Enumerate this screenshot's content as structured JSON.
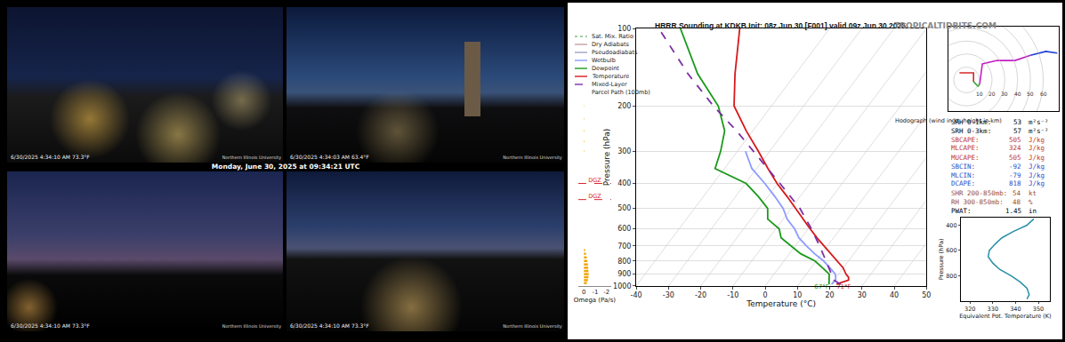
{
  "webcams": {
    "caption": "Monday, June 30, 2025 at 09:34:21 UTC",
    "panels": [
      {
        "timestamp": "6/30/2025 4:34:10 AM  73.3°F",
        "logo": "Northern Illinois University"
      },
      {
        "timestamp": "6/30/2025 4:34:03 AM  63.4°F",
        "logo": "Northern Illinois University"
      },
      {
        "timestamp": "6/30/2025 4:34:10 AM  73.3°F",
        "logo": "Northern Illinois University"
      },
      {
        "timestamp": "6/30/2025 4:34:10 AM  73.3°F",
        "logo": "Northern Illinois University"
      }
    ]
  },
  "site_label": "TROPICALTIDBITS.COM",
  "chart_data": [
    {
      "type": "skew-t",
      "title": "HRRR Sounding at KDKB Init: 08z Jun 30 [F001] valid 09z Jun 30 2025",
      "xlabel": "Temperature (°C)",
      "ylabel": "Pressure (hPa)",
      "xlim": [
        -40,
        50
      ],
      "xticks": [
        -40,
        -30,
        -20,
        -10,
        0,
        10,
        20,
        30,
        40,
        50
      ],
      "ylim": [
        1000,
        100
      ],
      "yticks": [
        100,
        200,
        300,
        400,
        500,
        600,
        700,
        800,
        900,
        1000
      ],
      "log": "y",
      "grid": true,
      "reference_lines": [
        {
          "name": "Sat. Mix. Ratio",
          "color": "#7fbf7f",
          "line_style": "dot"
        },
        {
          "name": "Dry Adiabats",
          "color": "#c8a0a0",
          "line_style": "solid"
        },
        {
          "name": "Pseudoadiabats",
          "color": "#a0a0c8",
          "line_style": "solid"
        }
      ],
      "series": [
        {
          "name": "Wetbulb",
          "color": "#8c9cff",
          "line_style": "solid",
          "y": [
            985,
            950,
            925,
            900,
            850,
            800,
            750,
            700,
            650,
            600,
            550,
            500,
            450,
            400,
            350,
            300
          ],
          "x": [
            20.2,
            20.5,
            19.8,
            19.0,
            15.8,
            12.3,
            7.8,
            3.5,
            -0.8,
            -4.2,
            -8.8,
            -12.5,
            -17.8,
            -24.0,
            -31.5,
            -37.5
          ]
        },
        {
          "name": "Dewpoint",
          "color": "#1a9a1a",
          "line_style": "solid",
          "y": [
            985,
            950,
            925,
            900,
            850,
            800,
            750,
            700,
            650,
            600,
            550,
            500,
            450,
            400,
            350,
            300,
            250,
            200,
            150,
            100
          ],
          "x": [
            19.4,
            18.5,
            17.8,
            17.1,
            13.5,
            9.6,
            3.5,
            -1.2,
            -6.3,
            -9.0,
            -14.8,
            -17.3,
            -22.9,
            -29.8,
            -42.9,
            -45.2,
            -48.7,
            -56.5,
            -70.4,
            -86.3
          ]
        },
        {
          "name": "Temperature",
          "color": "#d7191c",
          "line_style": "solid",
          "y": [
            985,
            950,
            925,
            900,
            850,
            800,
            750,
            700,
            650,
            600,
            550,
            500,
            450,
            400,
            350,
            300,
            250,
            200,
            150,
            100
          ],
          "x": [
            21.7,
            24.5,
            23.8,
            22.3,
            19.9,
            16.5,
            12.8,
            9.0,
            4.8,
            0.6,
            -3.8,
            -8.5,
            -14.0,
            -20.2,
            -26.5,
            -33.5,
            -42.0,
            -51.6,
            -58.8,
            -67.9
          ]
        },
        {
          "name": "Mixed-Layer Parcel Path (100mb)",
          "color": "#7b2fa6",
          "line_style": "dash",
          "y": [
            985,
            950,
            900,
            850,
            800,
            700,
            600,
            500,
            400,
            300,
            250,
            200,
            150,
            100
          ],
          "x": [
            23.0,
            20.0,
            17.8,
            15.5,
            13.0,
            7.6,
            1.0,
            -7.3,
            -19.3,
            -35.0,
            -45.0,
            -58.0,
            -73.4,
            -93.0
          ]
        }
      ],
      "annotations": [
        {
          "text": "67°F",
          "x": 19.4,
          "y": 985,
          "color": "#1a9a1a"
        },
        {
          "text": "71°F",
          "x": 21.7,
          "y": 985,
          "color": "#d7191c"
        }
      ]
    },
    {
      "type": "bar",
      "orientation": "horizontal",
      "xlabel": "Omega (Pa/s)",
      "xlim": [
        0.5,
        -2.4
      ],
      "xticks": [
        0,
        -1,
        -2
      ],
      "ylim": [
        1000,
        100
      ],
      "log": "y",
      "tick_labels": "x",
      "y": [
        975,
        950,
        925,
        900,
        875,
        850,
        825,
        800,
        775,
        750,
        725,
        300,
        275,
        250,
        225,
        200
      ],
      "values": [
        -0.25,
        -0.35,
        -0.4,
        -0.42,
        -0.4,
        -0.38,
        -0.35,
        -0.3,
        -0.25,
        -0.18,
        -0.1,
        -0.05,
        -0.06,
        -0.05,
        -0.04,
        -0.03
      ],
      "colors": [
        "#f0a500",
        "#f0a500",
        "#f0a500",
        "#f0a500",
        "#f0a500",
        "#f0a500",
        "#f0a500",
        "#f0a500",
        "#f0a500",
        "#f0a500",
        "#f0a500",
        "#f5d033",
        "#f5d033",
        "#f5d033",
        "#f5d033",
        "#f5d033"
      ],
      "annotations": [
        {
          "text": "DGZ",
          "y": 400,
          "color": "#d62728"
        },
        {
          "text": "DGZ",
          "y": 462,
          "color": "#d62728"
        }
      ]
    },
    {
      "type": "line",
      "title": "Hodograph (wind in kt, height in km)",
      "xlim": [
        -14,
        72
      ],
      "ylim": [
        -24,
        41
      ],
      "tick_labels": false,
      "rings": [
        10,
        20,
        30,
        40,
        50,
        60
      ],
      "series": [
        {
          "color": "#d62728",
          "x": [
            -5.5,
            5.5,
            5.5
          ],
          "y": [
            5.5,
            5.5,
            -1.4
          ]
        },
        {
          "color": "#2ca02c",
          "x": [
            5.5,
            9,
            10.3
          ],
          "y": [
            -1.4,
            -4.8,
            -3.4
          ]
        },
        {
          "color": "#c21fc2",
          "x": [
            10.3,
            12.4,
            24,
            38,
            50
          ],
          "y": [
            -3.4,
            12.4,
            15,
            15,
            19
          ]
        },
        {
          "color": "#1f3fd6",
          "x": [
            50,
            62,
            71
          ],
          "y": [
            19,
            22,
            20.7
          ]
        }
      ]
    },
    {
      "type": "line",
      "xlabel": "Equivalent Pot. Temperature (K)",
      "ylabel": "Pressure (hPa)",
      "xlim": [
        316,
        355
      ],
      "xticks": [
        320,
        330,
        340,
        350
      ],
      "ylim": [
        1000,
        340
      ],
      "yticks": [
        400,
        600,
        800
      ],
      "color": "#2a8fa8",
      "y": [
        985,
        950,
        900,
        850,
        800,
        750,
        700,
        650,
        600,
        550,
        500,
        450,
        400,
        350
      ],
      "x": [
        345,
        346,
        345,
        342,
        338,
        333,
        330,
        328,
        328.5,
        331,
        334,
        339,
        345,
        348
      ]
    }
  ],
  "parameters": [
    {
      "label": "SRH 0-1km:",
      "value": 53,
      "unit": "m²s⁻²",
      "color": "#000000"
    },
    {
      "label": "SRH 0-3km:",
      "value": 57,
      "unit": "m²s⁻²",
      "color": "#000000"
    },
    {
      "label": "SBCAPE:",
      "value": 505,
      "unit": "J/kg",
      "color": "#c0392b"
    },
    {
      "label": "MLCAPE:",
      "value": 324,
      "unit": "J/kg",
      "color": "#c0392b"
    },
    {
      "label": "MUCAPE:",
      "value": 505,
      "unit": "J/kg",
      "color": "#c0392b"
    },
    {
      "label": "SBCIN:",
      "value": -92,
      "unit": "J/kg",
      "color": "#2b4fc7"
    },
    {
      "label": "MLCIN:",
      "value": -79,
      "unit": "J/kg",
      "color": "#2b4fc7"
    },
    {
      "label": "DCAPE:",
      "value": 818,
      "unit": "J/kg",
      "color": "#2b4fc7"
    },
    {
      "label": "SHR 200-850mb:",
      "value": 54,
      "unit": "kt",
      "color": "#a0522d"
    },
    {
      "label": "RH 300-850mb:",
      "value": 48,
      "unit": "%",
      "color": "#a0522d"
    },
    {
      "label": "PWAT:",
      "value": 1.45,
      "unit": "in",
      "color": "#000000"
    }
  ]
}
